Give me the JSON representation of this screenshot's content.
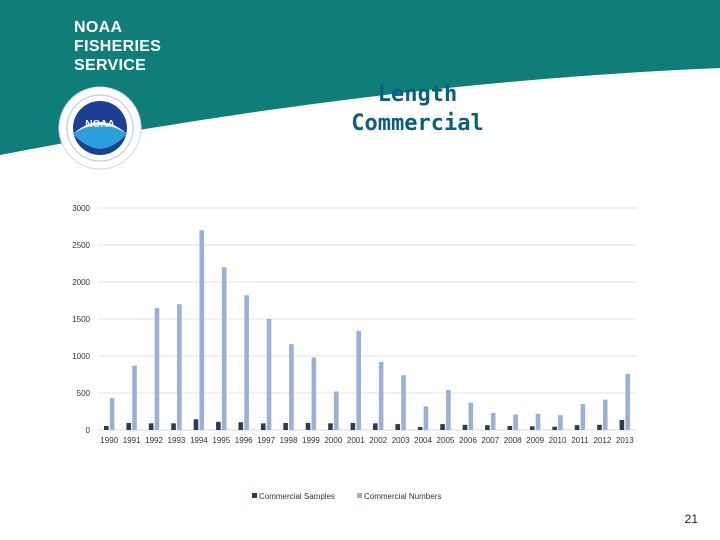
{
  "brand": {
    "line1": "NOAA",
    "line2": "FISHERIES",
    "line3": "SERVICE",
    "logo_text": "NOAA"
  },
  "colors": {
    "teal": "#0f7e78",
    "samples": "#2b3a55",
    "numbers": "#9bb0d6",
    "title": "#0a5e86"
  },
  "slide": {
    "title_line1": "Length",
    "title_line2": "Commercial",
    "page_number": "21"
  },
  "chart_data": {
    "type": "bar",
    "categories": [
      "1990",
      "1991",
      "1992",
      "1993",
      "1994",
      "1995",
      "1996",
      "1997",
      "1998",
      "1999",
      "2000",
      "2001",
      "2002",
      "2003",
      "2004",
      "2005",
      "2006",
      "2007",
      "2008",
      "2009",
      "2010",
      "2011",
      "2012",
      "2013"
    ],
    "series": [
      {
        "name": "Commercial Samples",
        "color": "#2b3a55",
        "values": [
          55,
          95,
          90,
          90,
          145,
          110,
          105,
          90,
          95,
          95,
          90,
          95,
          90,
          80,
          40,
          80,
          70,
          65,
          55,
          50,
          45,
          65,
          70,
          135
        ]
      },
      {
        "name": "Commercial Numbers",
        "color": "#9bb0d6",
        "values": [
          430,
          870,
          1650,
          1700,
          2700,
          2200,
          1820,
          1500,
          1160,
          980,
          520,
          1340,
          920,
          740,
          320,
          540,
          370,
          230,
          210,
          220,
          200,
          350,
          410,
          760
        ]
      }
    ],
    "ylim": [
      0,
      3000
    ],
    "yticks": [
      0,
      500,
      1000,
      1500,
      2000,
      2500,
      3000
    ],
    "grid": true,
    "legend": "bottom",
    "title": "",
    "xlabel": "",
    "ylabel": ""
  }
}
